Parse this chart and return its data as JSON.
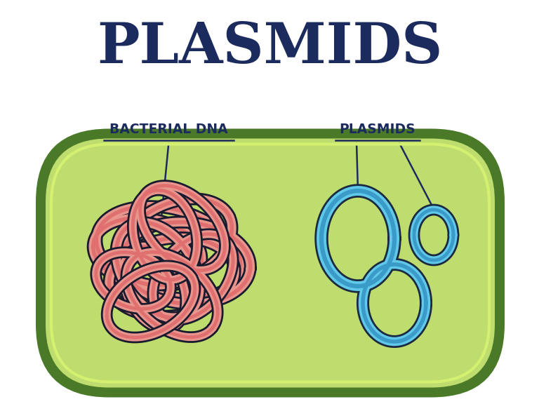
{
  "title": "PLASMIDS",
  "title_color": "#1c2b5e",
  "title_fontsize": 58,
  "bg_color": "#ffffff",
  "cell_fill": "#bedd6e",
  "cell_border_dark": "#4a7a28",
  "cell_border_mid": "#6aaa38",
  "cell_highlight": "#d4f070",
  "label_bacterial_dna": "BACTERIAL DNA",
  "label_plasmids": "PLASMIDS",
  "label_color": "#1c2b5e",
  "label_fontsize": 13.5,
  "dna_color_fill": "#e8958e",
  "dna_color_line": "#e07070",
  "dna_outline": "#1a1a2e",
  "plasmid_fill": "#60c8e8",
  "plasmid_line": "#3a9ac8",
  "plasmid_outline": "#1a2a40",
  "annotation_color": "#1c2b5e"
}
